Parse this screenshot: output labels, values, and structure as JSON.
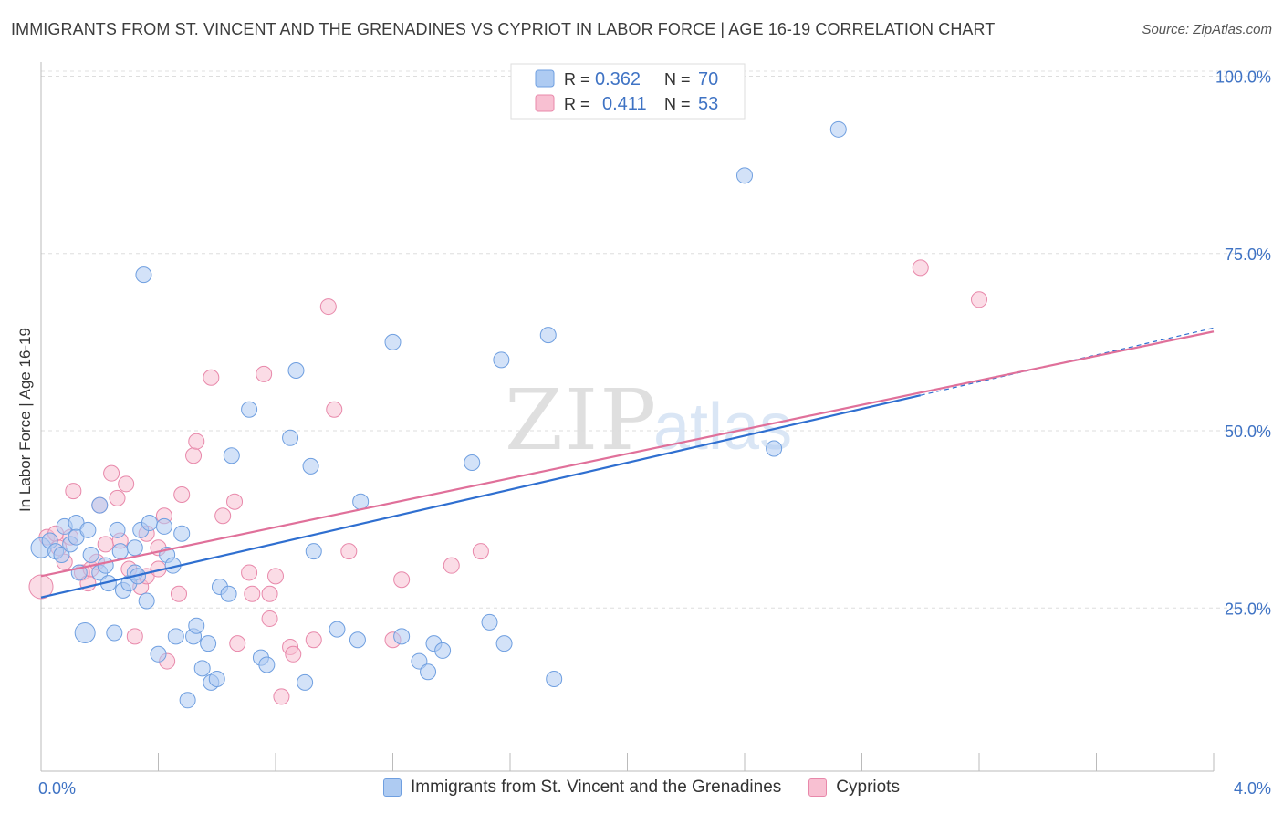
{
  "title": "IMMIGRANTS FROM ST. VINCENT AND THE GRENADINES VS CYPRIOT IN LABOR FORCE | AGE 16-19 CORRELATION CHART",
  "source": "Source: ZipAtlas.com",
  "watermark": {
    "zip": "ZIP",
    "atlas": "atlas"
  },
  "colors": {
    "blue_fill": "#aecbf2",
    "blue_stroke": "#6f9fe0",
    "blue_line": "#2f6fd0",
    "pink_fill": "#f8c0d2",
    "pink_stroke": "#e888aa",
    "pink_line": "#e0709a",
    "axis_text": "#3f73c4",
    "grid": "#d8d8d8"
  },
  "legend_top": [
    {
      "r_label": "R =",
      "r_value": "0.362",
      "n_label": "N =",
      "n_value": "70"
    },
    {
      "r_label": "R =",
      "r_value": "0.411",
      "n_label": "N =",
      "n_value": "53"
    }
  ],
  "chart_data": {
    "type": "scatter",
    "title": "IMMIGRANTS FROM ST. VINCENT AND THE GRENADINES VS CYPRIOT IN LABOR FORCE | AGE 16-19 CORRELATION CHART",
    "xlabel": "",
    "ylabel": "In Labor Force | Age 16-19",
    "xlim": [
      0,
      4
    ],
    "ylim": [
      2,
      102
    ],
    "x_tick_labels": [
      "0.0%",
      "4.0%"
    ],
    "y_ticks": [
      25,
      50,
      75,
      100
    ],
    "y_tick_labels": [
      "25.0%",
      "50.0%",
      "75.0%",
      "100.0%"
    ],
    "grid": true,
    "series": [
      {
        "name": "Immigrants from St. Vincent and the Grenadines",
        "color": "#6f9fe0",
        "trend": {
          "x": [
            0,
            3.0
          ],
          "y": [
            26.5,
            55.0
          ]
        },
        "points": [
          [
            0.0,
            33.5
          ],
          [
            0.03,
            34.5
          ],
          [
            0.05,
            33.0
          ],
          [
            0.07,
            32.5
          ],
          [
            0.08,
            36.5
          ],
          [
            0.1,
            34.0
          ],
          [
            0.12,
            37.0
          ],
          [
            0.12,
            35.0
          ],
          [
            0.13,
            30.0
          ],
          [
            0.15,
            21.5
          ],
          [
            0.16,
            36.0
          ],
          [
            0.17,
            32.5
          ],
          [
            0.2,
            30.0
          ],
          [
            0.22,
            31.0
          ],
          [
            0.23,
            28.5
          ],
          [
            0.25,
            21.5
          ],
          [
            0.26,
            36.0
          ],
          [
            0.27,
            33.0
          ],
          [
            0.28,
            27.5
          ],
          [
            0.3,
            28.5
          ],
          [
            0.32,
            30.0
          ],
          [
            0.33,
            29.5
          ],
          [
            0.34,
            36.0
          ],
          [
            0.35,
            72.0
          ],
          [
            0.36,
            26.0
          ],
          [
            0.37,
            37.0
          ],
          [
            0.4,
            18.5
          ],
          [
            0.42,
            36.5
          ],
          [
            0.43,
            32.5
          ],
          [
            0.45,
            31.0
          ],
          [
            0.46,
            21.0
          ],
          [
            0.48,
            35.5
          ],
          [
            0.5,
            12.0
          ],
          [
            0.52,
            21.0
          ],
          [
            0.53,
            22.5
          ],
          [
            0.55,
            16.5
          ],
          [
            0.57,
            20.0
          ],
          [
            0.58,
            14.5
          ],
          [
            0.6,
            15.0
          ],
          [
            0.61,
            28.0
          ],
          [
            0.64,
            27.0
          ],
          [
            0.65,
            46.5
          ],
          [
            0.71,
            53.0
          ],
          [
            0.75,
            18.0
          ],
          [
            0.77,
            17.0
          ],
          [
            0.85,
            49.0
          ],
          [
            0.87,
            58.5
          ],
          [
            0.9,
            14.5
          ],
          [
            0.92,
            45.0
          ],
          [
            0.93,
            33.0
          ],
          [
            1.01,
            22.0
          ],
          [
            1.08,
            20.5
          ],
          [
            1.09,
            40.0
          ],
          [
            1.2,
            62.5
          ],
          [
            1.23,
            21.0
          ],
          [
            1.29,
            17.5
          ],
          [
            1.32,
            16.0
          ],
          [
            1.34,
            20.0
          ],
          [
            1.37,
            19.0
          ],
          [
            1.47,
            45.5
          ],
          [
            1.53,
            23.0
          ],
          [
            1.57,
            60.0
          ],
          [
            1.58,
            20.0
          ],
          [
            1.73,
            63.5
          ],
          [
            1.75,
            15.0
          ],
          [
            2.4,
            86.0
          ],
          [
            2.5,
            47.5
          ],
          [
            2.72,
            92.5
          ],
          [
            0.2,
            39.5
          ],
          [
            0.32,
            33.5
          ]
        ]
      },
      {
        "name": "Cypriots",
        "color": "#e888aa",
        "trend": {
          "x": [
            0,
            4.0
          ],
          "y": [
            29.5,
            64.0
          ]
        },
        "points": [
          [
            0.0,
            28.0
          ],
          [
            0.02,
            35.0
          ],
          [
            0.05,
            35.5
          ],
          [
            0.06,
            33.5
          ],
          [
            0.08,
            31.5
          ],
          [
            0.1,
            35.0
          ],
          [
            0.11,
            41.5
          ],
          [
            0.14,
            30.0
          ],
          [
            0.16,
            28.5
          ],
          [
            0.17,
            30.5
          ],
          [
            0.19,
            31.5
          ],
          [
            0.2,
            39.5
          ],
          [
            0.22,
            34.0
          ],
          [
            0.24,
            44.0
          ],
          [
            0.26,
            40.5
          ],
          [
            0.27,
            34.5
          ],
          [
            0.29,
            42.5
          ],
          [
            0.3,
            30.5
          ],
          [
            0.32,
            21.0
          ],
          [
            0.34,
            28.0
          ],
          [
            0.36,
            35.5
          ],
          [
            0.36,
            29.5
          ],
          [
            0.4,
            30.5
          ],
          [
            0.42,
            38.0
          ],
          [
            0.43,
            17.5
          ],
          [
            0.47,
            27.0
          ],
          [
            0.48,
            41.0
          ],
          [
            0.52,
            46.5
          ],
          [
            0.53,
            48.5
          ],
          [
            0.58,
            57.5
          ],
          [
            0.62,
            38.0
          ],
          [
            0.66,
            40.0
          ],
          [
            0.67,
            20.0
          ],
          [
            0.71,
            30.0
          ],
          [
            0.72,
            27.0
          ],
          [
            0.76,
            58.0
          ],
          [
            0.78,
            27.0
          ],
          [
            0.78,
            23.5
          ],
          [
            0.8,
            29.5
          ],
          [
            0.82,
            12.5
          ],
          [
            0.85,
            19.5
          ],
          [
            0.86,
            18.5
          ],
          [
            0.93,
            20.5
          ],
          [
            0.98,
            67.5
          ],
          [
            1.0,
            53.0
          ],
          [
            1.05,
            33.0
          ],
          [
            1.2,
            20.5
          ],
          [
            1.23,
            29.0
          ],
          [
            1.4,
            31.0
          ],
          [
            1.5,
            33.0
          ],
          [
            3.0,
            73.0
          ],
          [
            3.2,
            68.5
          ],
          [
            0.4,
            33.5
          ]
        ]
      }
    ]
  },
  "legend_bottom": [
    "Immigrants from St. Vincent and the Grenadines",
    "Cypriots"
  ]
}
